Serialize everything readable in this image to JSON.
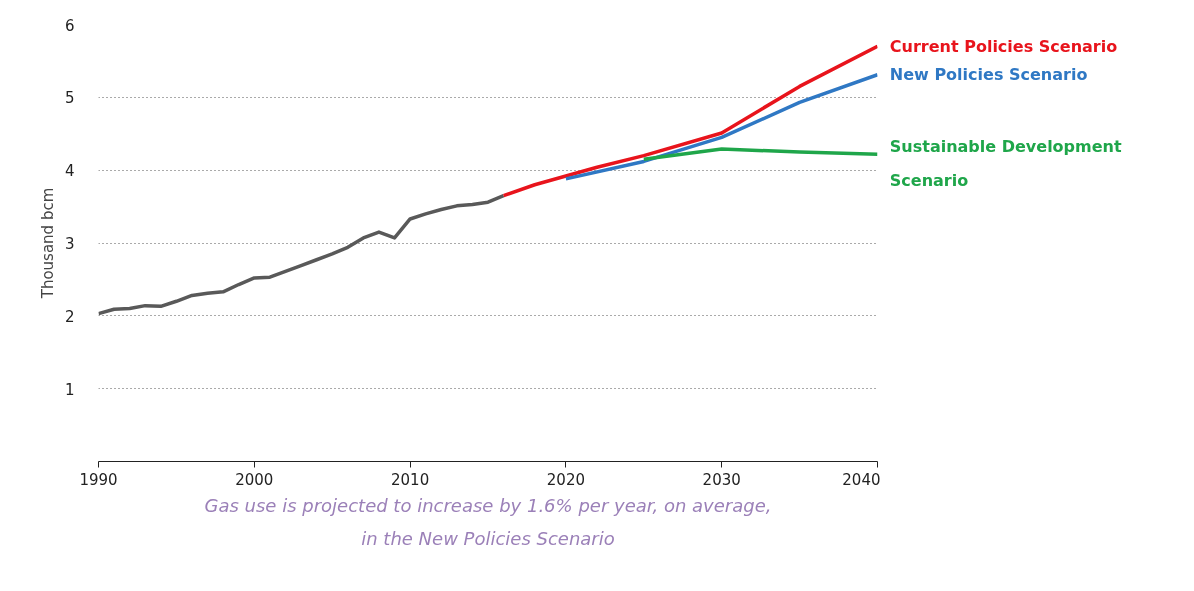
{
  "chart_data": {
    "type": "line",
    "ylabel": "Thousand bcm",
    "xlim": [
      1990,
      2040
    ],
    "xticks": [
      1990,
      2000,
      2010,
      2020,
      2030,
      2040
    ],
    "ylim": [
      0,
      6
    ],
    "yticks": [
      1,
      2,
      3,
      4,
      5,
      6
    ],
    "grid": "y",
    "series": [
      {
        "color": "#595959",
        "x": [
          1990,
          1991,
          1992,
          1993,
          1994,
          1995,
          1996,
          1997,
          1998,
          1999,
          2000,
          2001,
          2002,
          2003,
          2004,
          2005,
          2006,
          2007,
          2008,
          2009,
          2010,
          2011,
          2012,
          2013,
          2014,
          2015,
          2016
        ],
        "values": [
          2.03,
          2.09,
          2.1,
          2.14,
          2.13,
          2.2,
          2.28,
          2.31,
          2.33,
          2.43,
          2.52,
          2.53,
          2.61,
          2.69,
          2.77,
          2.85,
          2.94,
          3.07,
          3.15,
          3.07,
          3.33,
          3.4,
          3.46,
          3.51,
          3.53,
          3.56,
          3.65
        ]
      },
      {
        "name": "Current Policies Scenario",
        "color": "#e8141c",
        "x": [
          2016,
          2018,
          2022,
          2025,
          2030,
          2035,
          2040
        ],
        "values": [
          3.65,
          3.8,
          4.04,
          4.2,
          4.51,
          5.15,
          5.7
        ]
      },
      {
        "name": "New Policies Scenario",
        "color": "#2f78c4",
        "x": [
          2020,
          2025,
          2030,
          2035,
          2040
        ],
        "values": [
          3.88,
          4.12,
          4.45,
          4.93,
          5.31
        ]
      },
      {
        "name": "Sustainable Development Scenario",
        "color": "#1fa64a",
        "x": [
          2025,
          2030,
          2035,
          2040
        ],
        "values": [
          4.15,
          4.29,
          4.25,
          4.22
        ]
      }
    ],
    "annotations": [
      "Gas use is projected to increase by 1.6% per year, on average, in the New Policies Scenario"
    ]
  }
}
